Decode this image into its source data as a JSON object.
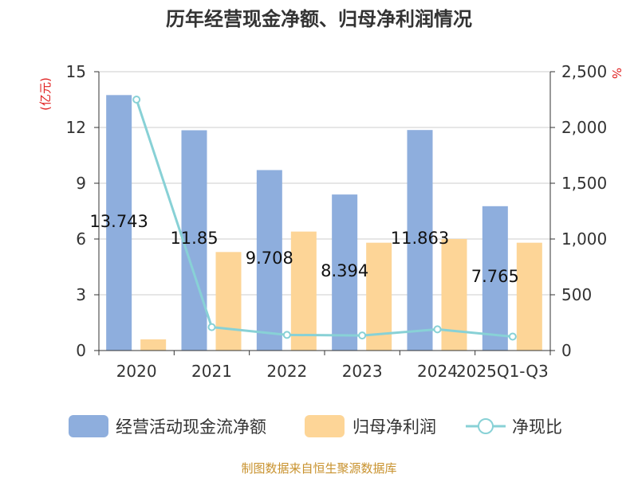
{
  "chart_data": {
    "type": "bar",
    "title": "历年经营现金净额、归母净利润情况",
    "categories": [
      "2020",
      "2021",
      "2022",
      "2023",
      "2024",
      "2025Q1-Q3"
    ],
    "series": [
      {
        "name": "经营活动现金流净额",
        "axis": "left",
        "type": "bar",
        "values": [
          13.743,
          11.85,
          9.708,
          8.394,
          11.863,
          7.765
        ],
        "data_labels": [
          "13.743",
          "11.85",
          "9.708",
          "8.394",
          "11.863",
          "7.765"
        ]
      },
      {
        "name": "归母净利润",
        "axis": "left",
        "type": "bar",
        "values": [
          0.6,
          5.3,
          6.4,
          5.8,
          6.0,
          5.8
        ]
      },
      {
        "name": "净现比",
        "axis": "right",
        "type": "line",
        "values": [
          2250,
          210,
          140,
          135,
          190,
          125
        ]
      }
    ],
    "y_left": {
      "unit": "(亿元)",
      "ylim": [
        0,
        15
      ],
      "ticks": [
        "0",
        "3",
        "6",
        "9",
        "12",
        "15"
      ]
    },
    "y_right": {
      "unit": "%",
      "ylim": [
        0,
        2500
      ],
      "ticks": [
        "0",
        "500",
        "1,000",
        "1,500",
        "2,000",
        "2,500"
      ]
    },
    "grid": true,
    "legend_position": "bottom"
  },
  "colors": {
    "bar1": "#8eaedd",
    "bar2": "#fdd597",
    "line": "#88d1d6",
    "unit": "#e02020",
    "source": "#c8922e"
  },
  "footer": {
    "source": "制图数据来自恒生聚源数据库"
  }
}
